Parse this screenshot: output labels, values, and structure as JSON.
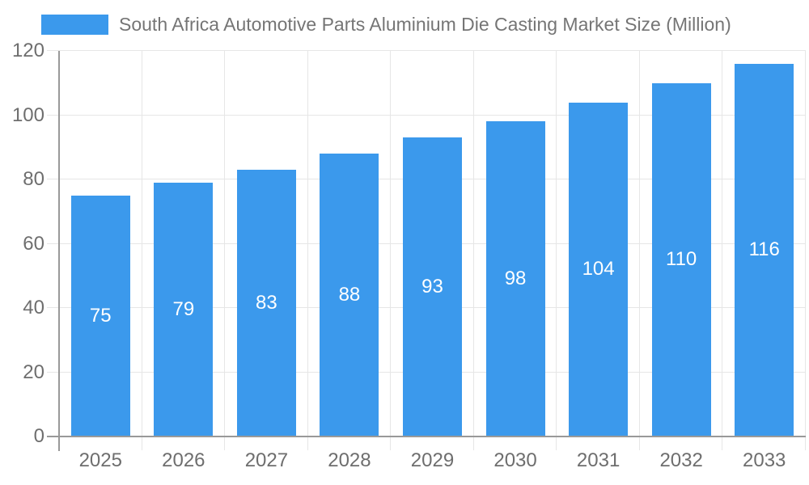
{
  "legend": {
    "label": "South Africa Automotive Parts Aluminium Die Casting Market Size (Million)"
  },
  "chart_data": {
    "type": "bar",
    "title": "South Africa Automotive Parts Aluminium Die Casting Market Size (Million)",
    "categories": [
      "2025",
      "2026",
      "2027",
      "2028",
      "2029",
      "2030",
      "2031",
      "2032",
      "2033"
    ],
    "values": [
      75,
      79,
      83,
      88,
      93,
      98,
      104,
      110,
      116
    ],
    "value_labels": [
      "75",
      "79",
      "83",
      "88",
      "93",
      "98",
      "104",
      "110",
      "116"
    ],
    "xlabel": "",
    "ylabel": "",
    "ylim": [
      0,
      120
    ],
    "yticks": [
      0,
      20,
      40,
      60,
      80,
      100,
      120
    ],
    "grid": true,
    "legend_position": "top",
    "colors": {
      "bar": "#3b99ec",
      "value_label": "#ffffff",
      "axis_text": "#6e6e6e",
      "title_text": "#757575",
      "axis_line": "#999999",
      "gridline": "#e6e6e6",
      "background": "#ffffff"
    }
  }
}
